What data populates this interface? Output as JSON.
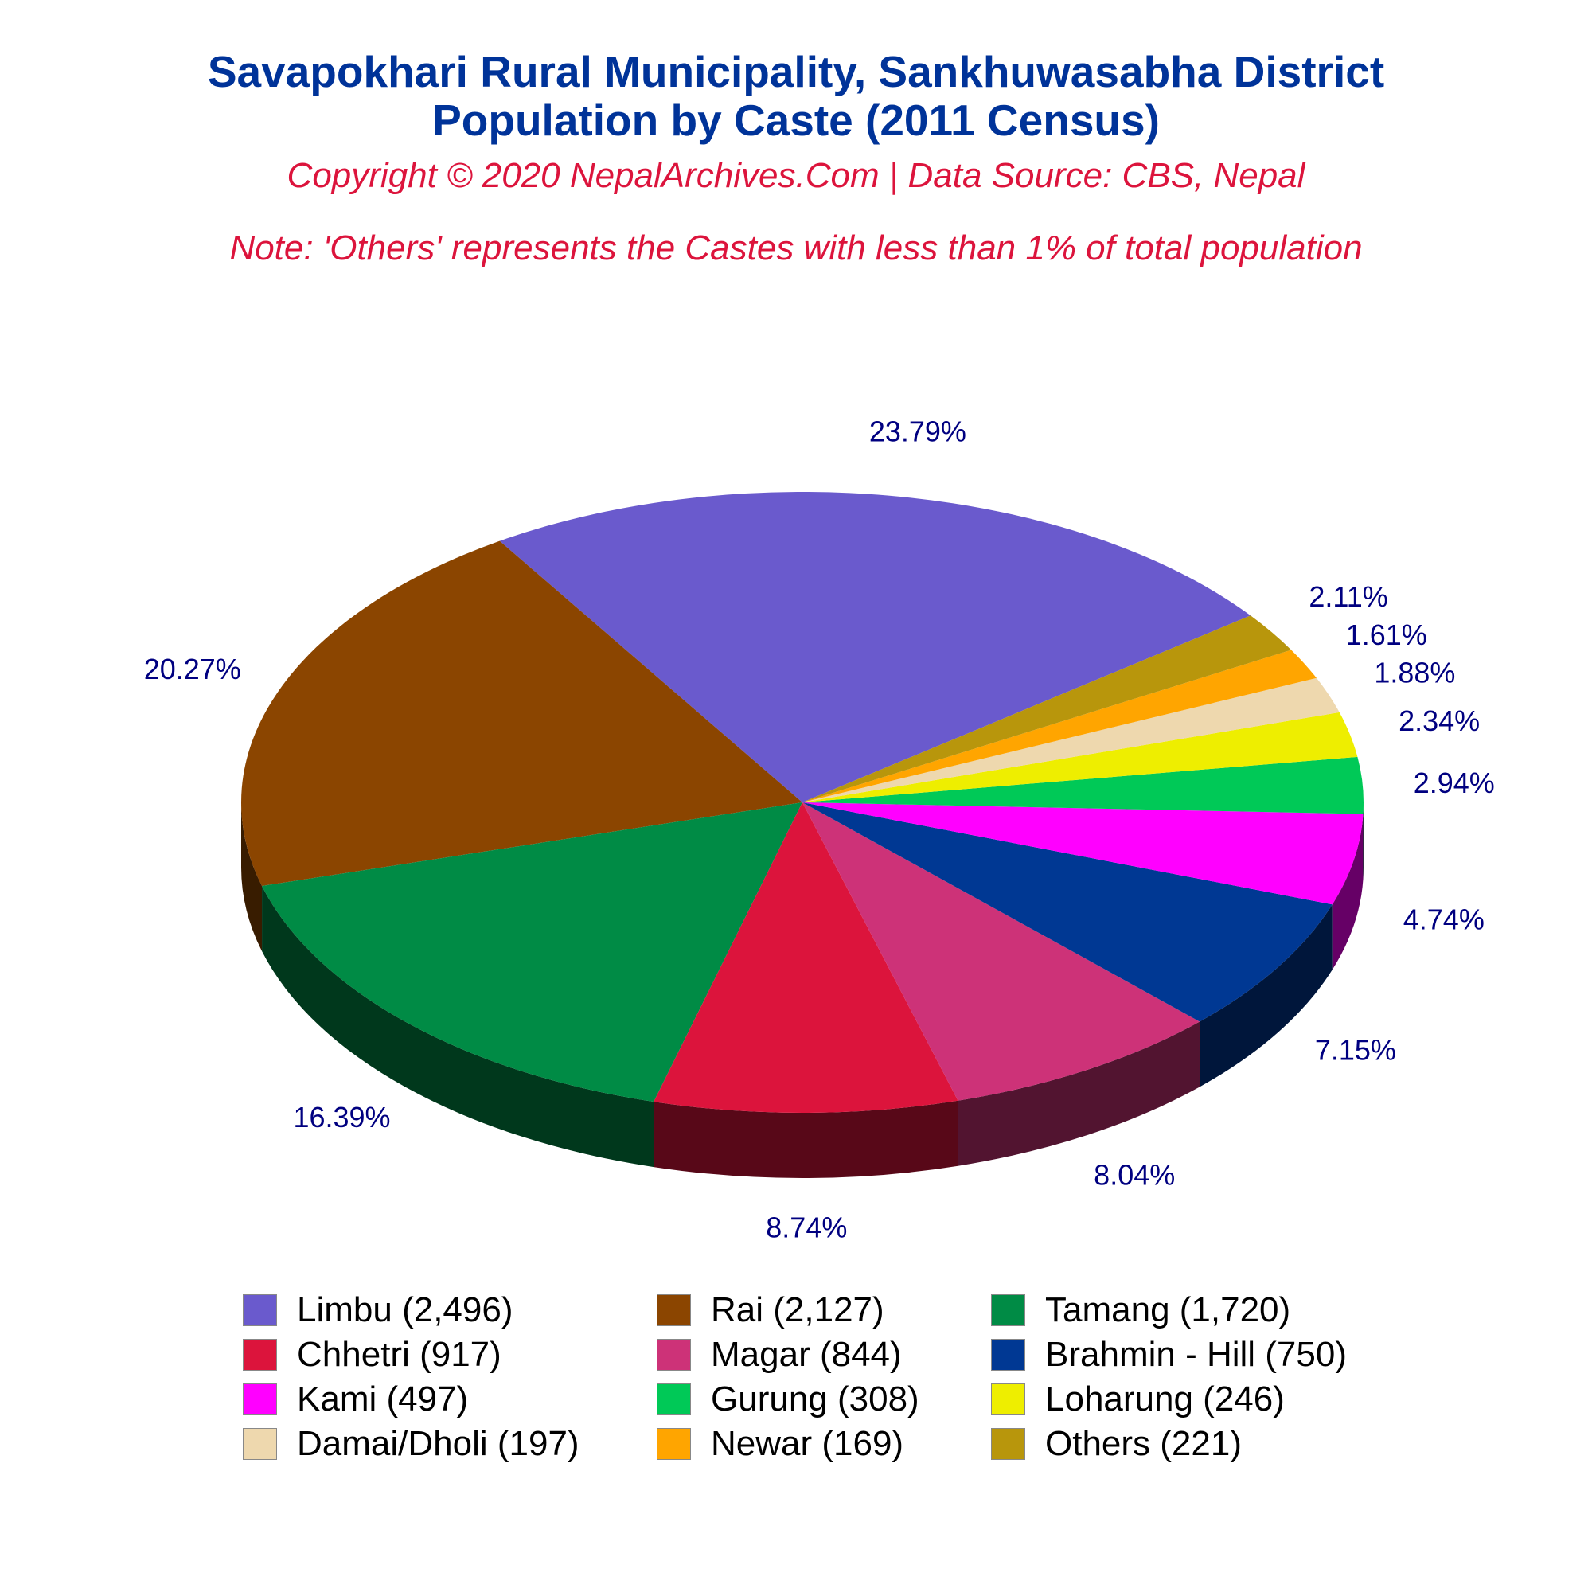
{
  "title_line1": "Savapokhari Rural Municipality, Sankhuwasabha District",
  "title_line2": "Population by Caste (2011 Census)",
  "subtitle": "Copyright © 2020 NepalArchives.Com | Data Source: CBS, Nepal",
  "note": "Note: 'Others' represents the Castes with less than 1% of total population",
  "chart_data": {
    "type": "pie",
    "style": "3d",
    "categories": [
      "Limbu",
      "Rai",
      "Tamang",
      "Chhetri",
      "Magar",
      "Brahmin - Hill",
      "Kami",
      "Gurung",
      "Loharung",
      "Damai/Dholi",
      "Newar",
      "Others"
    ],
    "values": [
      2496,
      2127,
      1720,
      917,
      844,
      750,
      497,
      308,
      246,
      197,
      169,
      221
    ],
    "percent_labels": [
      "23.79%",
      "20.27%",
      "16.39%",
      "8.74%",
      "8.04%",
      "7.15%",
      "4.74%",
      "2.94%",
      "2.34%",
      "1.88%",
      "1.61%",
      "2.11%"
    ],
    "legend_labels": [
      "Limbu (2,496)",
      "Rai (2,127)",
      "Tamang (1,720)",
      "Chhetri (917)",
      "Magar (844)",
      "Brahmin - Hill (750)",
      "Kami (497)",
      "Gurung (308)",
      "Loharung (246)",
      "Damai/Dholi (197)",
      "Newar (169)",
      "Others (221)"
    ],
    "colors": [
      "#6a5acd",
      "#8b4500",
      "#008b45",
      "#dc143c",
      "#cd3278",
      "#003893",
      "#ff00ff",
      "#00c957",
      "#eeee00",
      "#eed8ae",
      "#ffa500",
      "#b8960c"
    ],
    "legend_placement": "bottom",
    "label_color": "#000080"
  }
}
